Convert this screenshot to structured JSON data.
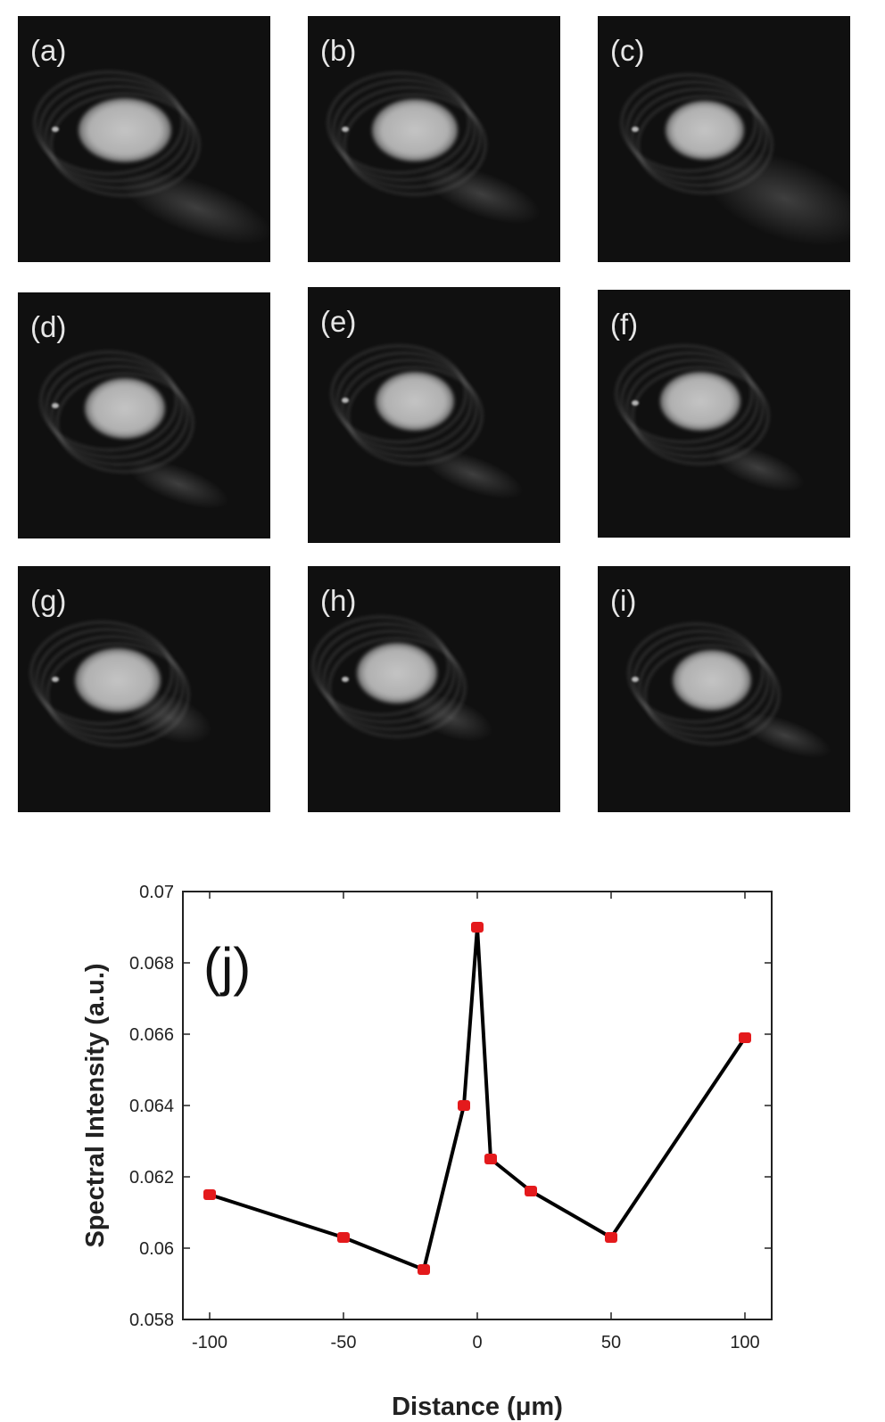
{
  "panels": [
    {
      "label": "(a)"
    },
    {
      "label": "(b)"
    },
    {
      "label": "(c)"
    },
    {
      "label": "(d)"
    },
    {
      "label": "(e)"
    },
    {
      "label": "(f)"
    },
    {
      "label": "(g)"
    },
    {
      "label": "(h)"
    },
    {
      "label": "(i)"
    }
  ],
  "chart_data": {
    "type": "line",
    "panel_label": "(j)",
    "xlabel": "Distance (μm)",
    "ylabel": "Spectral Intensity (a.u.)",
    "xlim": [
      -110,
      110
    ],
    "ylim": [
      0.058,
      0.07
    ],
    "xticks": [
      -100,
      -50,
      0,
      50,
      100
    ],
    "xtick_labels": [
      "-100",
      "-50",
      "0",
      "50",
      "100"
    ],
    "yticks": [
      0.058,
      0.06,
      0.062,
      0.064,
      0.066,
      0.068,
      0.07
    ],
    "ytick_labels": [
      "0.058",
      "0.06",
      "0.062",
      "0.064",
      "0.066",
      "0.068",
      "0.07"
    ],
    "grid": false,
    "series": [
      {
        "x": [
          -100,
          -50,
          -20,
          -5,
          0,
          5,
          20,
          50,
          100
        ],
        "y": [
          0.0615,
          0.0603,
          0.0594,
          0.064,
          0.069,
          0.0625,
          0.0616,
          0.0603,
          0.0659
        ],
        "line_color": "#000000",
        "marker_color": "#e41a1c"
      }
    ]
  }
}
